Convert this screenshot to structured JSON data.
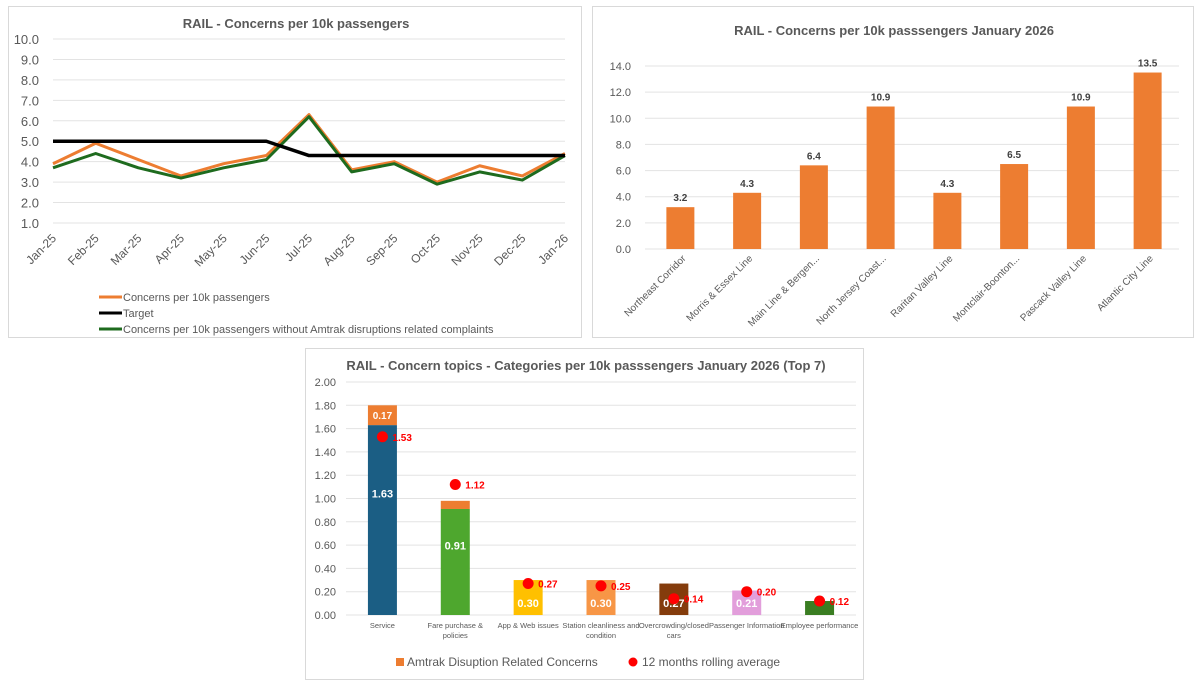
{
  "chart_data": [
    {
      "id": "line",
      "type": "line",
      "title": "RAIL - Concerns per 10k passengers",
      "xlabel": "",
      "ylabel": "",
      "ylim": [
        1.0,
        10.0
      ],
      "yticks": [
        "10.0",
        "9.0",
        "8.0",
        "7.0",
        "6.0",
        "5.0",
        "4.0",
        "3.0",
        "2.0",
        "1.0"
      ],
      "ytick_values": [
        10,
        9,
        8,
        7,
        6,
        5,
        4,
        3,
        2,
        1
      ],
      "categories": [
        "Jan-25",
        "Feb-25",
        "Mar-25",
        "Apr-25",
        "May-25",
        "Jun-25",
        "Jul-25",
        "Aug-25",
        "Sep-25",
        "Oct-25",
        "Nov-25",
        "Dec-25",
        "Jan-26"
      ],
      "grid": true,
      "legend_position": "bottom",
      "series": [
        {
          "name": "Concerns per 10k passengers",
          "color": "#ED7D31",
          "values": [
            3.9,
            4.9,
            4.1,
            3.3,
            3.9,
            4.3,
            6.3,
            3.6,
            4.0,
            3.0,
            3.8,
            3.3,
            4.4
          ]
        },
        {
          "name": "Target",
          "color": "#000000",
          "values": [
            5.0,
            5.0,
            5.0,
            5.0,
            5.0,
            5.0,
            4.3,
            4.3,
            4.3,
            4.3,
            4.3,
            4.3,
            4.3
          ]
        },
        {
          "name": "Concerns per 10k passengers without Amtrak disruptions related complaints",
          "color": "#1E6B1E",
          "values": [
            3.7,
            4.4,
            3.7,
            3.2,
            3.7,
            4.1,
            6.2,
            3.5,
            3.9,
            2.9,
            3.5,
            3.1,
            4.3
          ]
        }
      ]
    },
    {
      "id": "bar",
      "type": "bar",
      "title": "RAIL - Concerns per 10k passsengers January 2026",
      "xlabel": "",
      "ylabel": "",
      "ylim": [
        0,
        14
      ],
      "yticks": [
        "14.0",
        "12.0",
        "10.0",
        "8.0",
        "6.0",
        "4.0",
        "2.0",
        "0.0"
      ],
      "ytick_values": [
        14,
        12,
        10,
        8,
        6,
        4,
        2,
        0
      ],
      "grid": true,
      "bar_color": "#ED7D31",
      "categories": [
        "Northeast Corridor",
        "Morris & Essex Line",
        "Main Line & Bergen...",
        "North Jersey Coast...",
        "Raritan Valley Line",
        "Montclair-Boonton...",
        "Pascack Valley Line",
        "Atlantic City Line"
      ],
      "values": [
        3.2,
        4.3,
        6.4,
        10.9,
        4.3,
        6.5,
        10.9,
        13.5
      ],
      "data_labels": [
        "3.2",
        "4.3",
        "6.4",
        "10.9",
        "4.3",
        "6.5",
        "10.9",
        "13.5"
      ]
    },
    {
      "id": "stacked",
      "type": "bar",
      "title": "RAIL - Concern topics - Categories per 10k passsengers January 2026 (Top 7)",
      "xlabel": "",
      "ylabel": "",
      "ylim": [
        0,
        2.0
      ],
      "yticks": [
        "2.00",
        "1.80",
        "1.60",
        "1.40",
        "1.20",
        "1.00",
        "0.80",
        "0.60",
        "0.40",
        "0.20",
        "0.00"
      ],
      "ytick_values": [
        2.0,
        1.8,
        1.6,
        1.4,
        1.2,
        1.0,
        0.8,
        0.6,
        0.4,
        0.2,
        0.0
      ],
      "grid": true,
      "legend_position": "bottom",
      "categories": [
        [
          "Service"
        ],
        [
          "Fare purchase &",
          "policies"
        ],
        [
          "App & Web issues"
        ],
        [
          "Station cleanliness and",
          "condition"
        ],
        [
          "Overcrowding/closed",
          "cars"
        ],
        [
          "Passenger Information"
        ],
        [
          "Employee performance"
        ]
      ],
      "base_values": [
        1.63,
        0.91,
        0.3,
        0.3,
        0.27,
        0.21,
        0.12
      ],
      "base_labels": [
        "1.63",
        "0.91",
        "0.30",
        "0.30",
        "0.27",
        "0.21",
        ""
      ],
      "base_colors": [
        "#1B5E84",
        "#4EA72E",
        "#FFC000",
        "#F79646",
        "#843C0C",
        "#E29EDB",
        "#3A7D22"
      ],
      "amtrak_values": [
        0.17,
        0.07,
        0,
        0,
        0,
        0,
        0
      ],
      "amtrak_labels": [
        "0.17",
        "",
        "",
        "",
        "",
        "",
        ""
      ],
      "amtrak_color": "#ED7D31",
      "rolling_avg": [
        1.53,
        1.12,
        0.27,
        0.25,
        0.14,
        0.2,
        0.12
      ],
      "rolling_avg_labels": [
        "1.53",
        "1.12",
        "0.27",
        "0.25",
        "0.14",
        "0.20",
        "0.12"
      ],
      "rolling_color": "#FF0000",
      "legend": [
        "Amtrak Disuption Related Concerns",
        "12 months rolling average"
      ]
    }
  ]
}
